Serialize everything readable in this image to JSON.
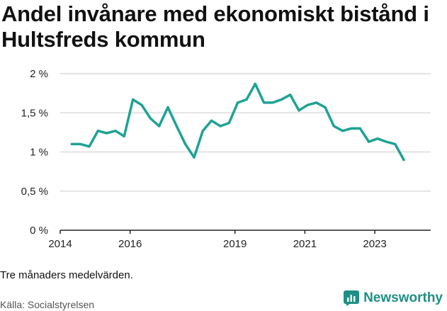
{
  "title": "Andel invånare med ekonomiskt bistånd i Hultsfreds kommun",
  "footnote": "Tre månaders medelvärden.",
  "source": "Källa: Socialstyrelsen",
  "brand": {
    "name": "Newsworthy",
    "icon": "newsworthy-logo-icon",
    "color": "#1f8f85"
  },
  "chart_data": {
    "type": "line",
    "title": "Andel invånare med ekonomiskt bistånd i Hultsfreds kommun",
    "xlabel": "",
    "ylabel": "",
    "grid": true,
    "legend": "none",
    "xlim": [
      2014,
      2024.6
    ],
    "ylim": [
      0,
      2
    ],
    "x_ticks": [
      2014,
      2016,
      2019,
      2021,
      2023
    ],
    "y_ticks": [
      {
        "value": 0,
        "label": "0 %"
      },
      {
        "value": 0.5,
        "label": "0,5 %"
      },
      {
        "value": 1,
        "label": "1 %"
      },
      {
        "value": 1.5,
        "label": "1,5 %"
      },
      {
        "value": 2,
        "label": "2 %"
      }
    ],
    "series": [
      {
        "name": "",
        "color": "#1fa293",
        "x": [
          2014.33,
          2014.58,
          2014.83,
          2015.08,
          2015.33,
          2015.58,
          2015.83,
          2016.08,
          2016.33,
          2016.58,
          2016.83,
          2017.08,
          2017.33,
          2017.58,
          2017.83,
          2018.08,
          2018.33,
          2018.58,
          2018.83,
          2019.08,
          2019.33,
          2019.58,
          2019.83,
          2020.08,
          2020.33,
          2020.58,
          2020.83,
          2021.08,
          2021.33,
          2021.58,
          2021.83,
          2022.08,
          2022.33,
          2022.58,
          2022.83,
          2023.08,
          2023.33,
          2023.58,
          2023.83
        ],
        "y": [
          1.1,
          1.1,
          1.07,
          1.27,
          1.24,
          1.27,
          1.2,
          1.67,
          1.6,
          1.43,
          1.33,
          1.57,
          1.33,
          1.1,
          0.93,
          1.27,
          1.4,
          1.33,
          1.37,
          1.63,
          1.67,
          1.87,
          1.63,
          1.63,
          1.67,
          1.73,
          1.53,
          1.6,
          1.63,
          1.57,
          1.33,
          1.27,
          1.3,
          1.3,
          1.13,
          1.17,
          1.13,
          1.1,
          0.9
        ]
      }
    ]
  }
}
